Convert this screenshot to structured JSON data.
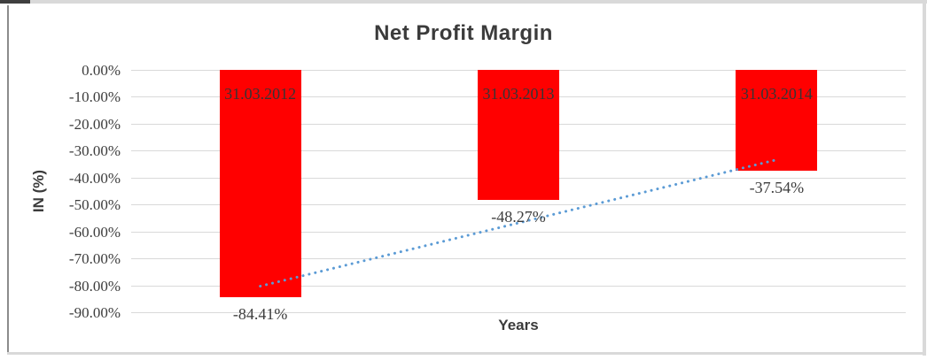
{
  "frame": {
    "border_color": "#d9d9d9",
    "border_dark_color": "#3f3f3f",
    "border_left_color": "#8c8c8c",
    "background": "#ffffff"
  },
  "chart_data": {
    "type": "bar",
    "title": "Net Profit Margin",
    "xlabel": "Years",
    "ylabel": "IN (%)",
    "categories": [
      "31.03.2012",
      "31.03.2013",
      "31.03.2014"
    ],
    "values": [
      -84.41,
      -48.27,
      -37.54
    ],
    "value_labels": [
      "-84.41%",
      "-48.27%",
      "-37.54%"
    ],
    "y_ticks": [
      "0.00%",
      "-10.00%",
      "-20.00%",
      "-30.00%",
      "-40.00%",
      "-50.00%",
      "-60.00%",
      "-70.00%",
      "-80.00%",
      "-90.00%"
    ],
    "ylim": [
      0,
      -90
    ],
    "grid": true,
    "legend": "none",
    "bar_color": "#ff0000",
    "label_color": "#3d3d3d",
    "trendline": {
      "type": "linear",
      "style": "dotted",
      "color": "#5b9bd5"
    }
  }
}
